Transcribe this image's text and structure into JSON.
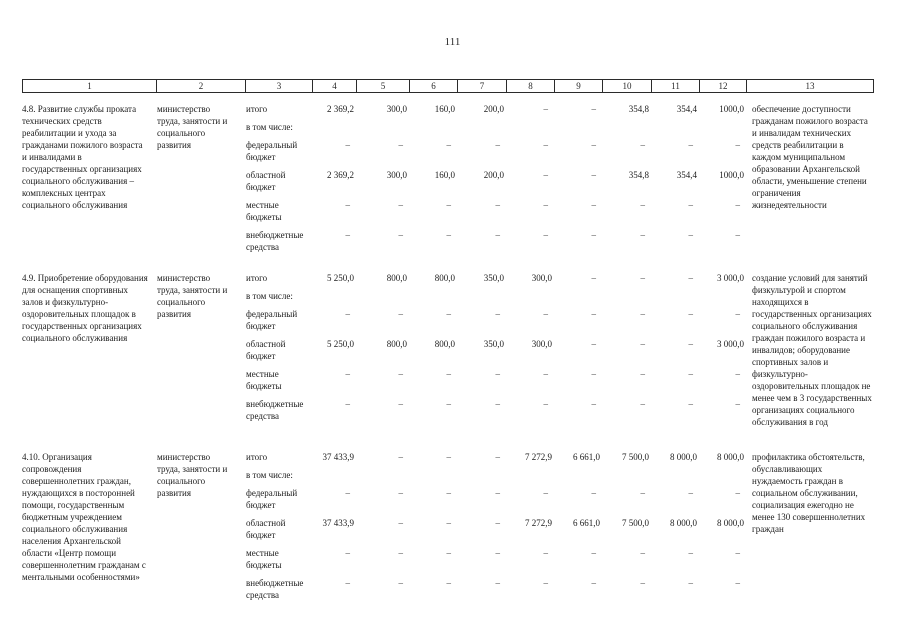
{
  "page": {
    "number": "111"
  },
  "table": {
    "column_numbers": [
      "1",
      "2",
      "3",
      "4",
      "5",
      "6",
      "7",
      "8",
      "9",
      "10",
      "11",
      "12",
      "13"
    ],
    "in_total_sublabel": "в том числе:",
    "rows": [
      {
        "activity": "4.8. Развитие службы проката технических средств реабилитации и ухода за гражданами пожилого возраста и инвалидами в государственных организациях социального обслуживания – комплексных центрах социального обслуживания",
        "executor": "министерство труда, занятости и социального развития",
        "budget_lines": [
          {
            "label": "итого",
            "values": [
              "2 369,2",
              "300,0",
              "160,0",
              "200,0",
              "–",
              "–",
              "354,8",
              "354,4",
              "1000,0"
            ]
          },
          {
            "label": "федеральный бюджет",
            "values": [
              "–",
              "–",
              "–",
              "–",
              "–",
              "–",
              "–",
              "–",
              "–"
            ]
          },
          {
            "label": "областной бюджет",
            "values": [
              "2 369,2",
              "300,0",
              "160,0",
              "200,0",
              "–",
              "–",
              "354,8",
              "354,4",
              "1000,0"
            ]
          },
          {
            "label": "местные бюджеты",
            "values": [
              "–",
              "–",
              "–",
              "–",
              "–",
              "–",
              "–",
              "–",
              "–"
            ]
          },
          {
            "label": "внебюджетные средства",
            "values": [
              "–",
              "–",
              "–",
              "–",
              "–",
              "–",
              "–",
              "–",
              "–"
            ]
          }
        ],
        "expected_result": "обеспечение доступности гражданам пожилого возраста и инвалидам технических средств реабилитации в каждом муниципальном образовании Архангельской области, уменьшение степени ограничения жизнедеятельности"
      },
      {
        "activity": "4.9. Приобретение оборудования для оснащения спортивных залов и физкультурно-оздоровительных площадок в государственных организациях социального обслуживания",
        "executor": "министерство труда, занятости и социального развития",
        "budget_lines": [
          {
            "label": "итого",
            "values": [
              "5 250,0",
              "800,0",
              "800,0",
              "350,0",
              "300,0",
              "–",
              "–",
              "–",
              "3 000,0"
            ]
          },
          {
            "label": "федеральный бюджет",
            "values": [
              "–",
              "–",
              "–",
              "–",
              "–",
              "–",
              "–",
              "–",
              "–"
            ]
          },
          {
            "label": "областной бюджет",
            "values": [
              "5 250,0",
              "800,0",
              "800,0",
              "350,0",
              "300,0",
              "–",
              "–",
              "–",
              "3 000,0"
            ]
          },
          {
            "label": "местные бюджеты",
            "values": [
              "–",
              "–",
              "–",
              "–",
              "–",
              "–",
              "–",
              "–",
              "–"
            ]
          },
          {
            "label": "внебюджетные средства",
            "values": [
              "–",
              "–",
              "–",
              "–",
              "–",
              "–",
              "–",
              "–",
              "–"
            ]
          }
        ],
        "expected_result": "создание условий для занятий физкультурой и спортом находящихся в государственных организациях социального обслуживания граждан пожилого возраста и инвалидов; оборудование спортивных залов и физкультурно-оздоровительных площадок не менее чем в 3 государственных организациях социального обслуживания в год"
      },
      {
        "activity": "4.10. Организация сопровождения совершеннолетних граждан, нуждающихся в посторонней помощи, государственным бюджетным учреждением социального обслуживания населения Архангельской области «Центр помощи совершеннолетним гражданам с ментальными особенностями»",
        "executor": "министерство труда, занятости и социального развития",
        "budget_lines": [
          {
            "label": "итого",
            "values": [
              "37 433,9",
              "–",
              "–",
              "–",
              "7 272,9",
              "6 661,0",
              "7 500,0",
              "8 000,0",
              "8 000,0"
            ]
          },
          {
            "label": "федеральный бюджет",
            "values": [
              "–",
              "–",
              "–",
              "–",
              "–",
              "–",
              "–",
              "–",
              "–"
            ]
          },
          {
            "label": "областной бюджет",
            "values": [
              "37 433,9",
              "–",
              "–",
              "–",
              "7 272,9",
              "6 661,0",
              "7 500,0",
              "8 000,0",
              "8 000,0"
            ]
          },
          {
            "label": "местные бюджеты",
            "values": [
              "–",
              "–",
              "–",
              "–",
              "–",
              "–",
              "–",
              "–",
              "–"
            ]
          },
          {
            "label": "внебюджетные средства",
            "values": [
              "–",
              "–",
              "–",
              "–",
              "–",
              "–",
              "–",
              "–",
              "–"
            ]
          }
        ],
        "expected_result": "профилактика обстоятельств, обуславливающих нуждаемость граждан в социальном обслуживании, социализация ежегодно не менее 130 совершеннолетних граждан"
      }
    ]
  }
}
